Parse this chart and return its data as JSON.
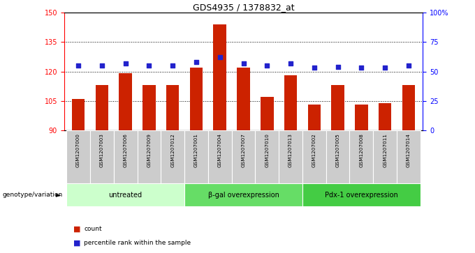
{
  "title": "GDS4935 / 1378832_at",
  "samples": [
    "GSM1207000",
    "GSM1207003",
    "GSM1207006",
    "GSM1207009",
    "GSM1207012",
    "GSM1207001",
    "GSM1207004",
    "GSM1207007",
    "GSM1207010",
    "GSM1207013",
    "GSM1207002",
    "GSM1207005",
    "GSM1207008",
    "GSM1207011",
    "GSM1207014"
  ],
  "counts": [
    106,
    113,
    119,
    113,
    113,
    122,
    144,
    122,
    107,
    118,
    103,
    113,
    103,
    104,
    113
  ],
  "percentiles": [
    55,
    55,
    57,
    55,
    55,
    58,
    62,
    57,
    55,
    57,
    53,
    54,
    53,
    53,
    55
  ],
  "ylim_left": [
    90,
    150
  ],
  "ylim_right": [
    0,
    100
  ],
  "yticks_left": [
    90,
    105,
    120,
    135,
    150
  ],
  "yticks_right": [
    0,
    25,
    50,
    75,
    100
  ],
  "groups": [
    {
      "label": "untreated",
      "start": 0,
      "end": 5,
      "color": "#ccffcc"
    },
    {
      "label": "β-gal overexpression",
      "start": 5,
      "end": 10,
      "color": "#66dd66"
    },
    {
      "label": "Pdx-1 overexpression",
      "start": 10,
      "end": 15,
      "color": "#44cc44"
    }
  ],
  "bar_color": "#cc2200",
  "dot_color": "#2222cc",
  "bar_width": 0.55,
  "background_color": "#ffffff",
  "grid_ticks": [
    105,
    120,
    135
  ]
}
